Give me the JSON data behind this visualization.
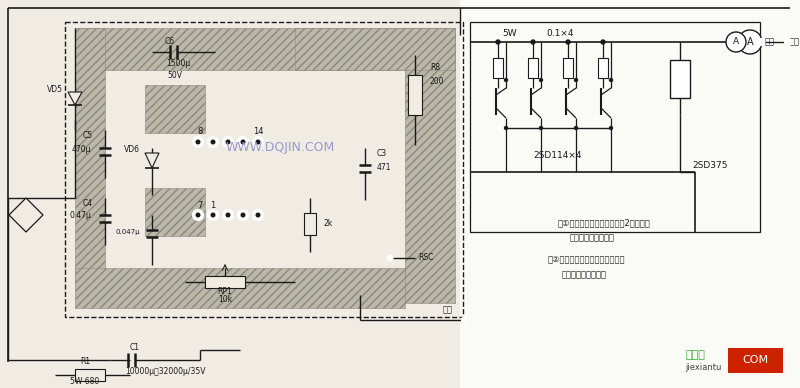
{
  "bg_color": "#f0ece4",
  "bg_right": "#ffffff",
  "line_color": "#1a1a1a",
  "pcb_fill": "#c8c2b0",
  "pcb_edge": "#888880",
  "watermark_text": "WWW.DQJIN.COM",
  "watermark_color": "#9999cc",
  "note1": "注①虚线内印制电路为实用杔2倍放大，",
  "note1b": "副作时需缩小一半。",
  "note2": "注②虚线外元件因体积大等原因，",
  "note2b": "均安装印刷板外部。",
  "label_out1": "输出",
  "label_out2": "输出",
  "label_5W": "5W",
  "label_01x4": "0.1×4",
  "label_2SD114x4": "2SD114×4",
  "label_2SD375": "2SD375",
  "label_C6": "C6",
  "label_C6val": "1500μ",
  "label_50V": "50V",
  "label_C5": "C5",
  "label_C5val": "470μ",
  "label_VD5": "VD5",
  "label_VD6": "VD6",
  "label_C4": "C4",
  "label_C4val": "0.47μ",
  "label_Cx": "0.047μ",
  "label_C3": "C3",
  "label_C3val": "471",
  "label_R8": "R8",
  "label_R8val": "200",
  "label_2k": "2k",
  "label_RSC": "RSC",
  "label_RP1": "RP1",
  "label_RP1val": "10k",
  "label_C1": "C1",
  "label_C1val": "10000μ～32000μ/35V",
  "label_R1": "R1",
  "label_R1val": "5W 680",
  "label_8": "8",
  "label_14": "14",
  "label_7": "7",
  "label_1": "1",
  "site_name": "接线图",
  "site_url": "jiexiantu",
  "site_color": "#33aa33",
  "com_bg": "#cc2200"
}
